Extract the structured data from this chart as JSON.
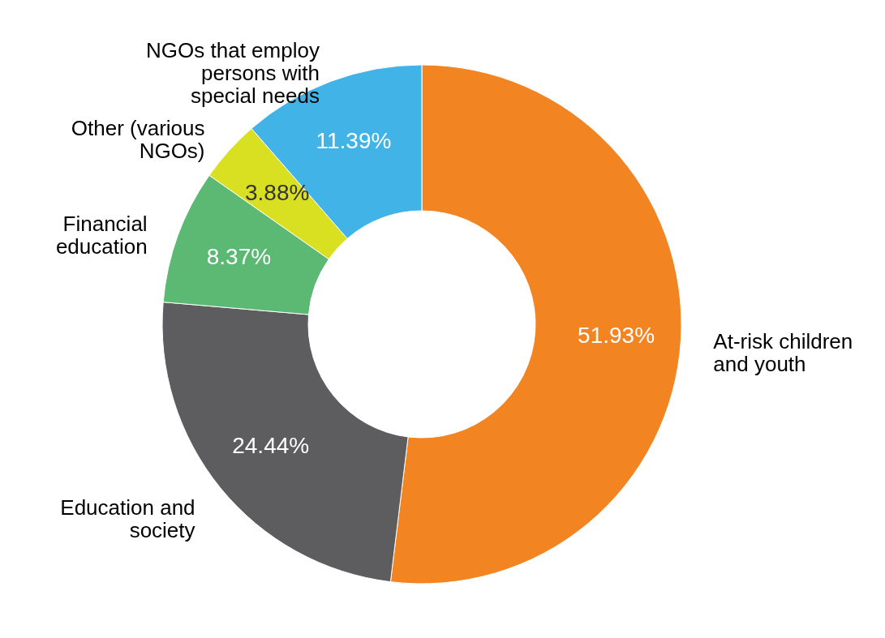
{
  "chart_data": {
    "type": "donut",
    "categories": [
      "At-risk children and youth",
      "Education and society",
      "Financial education",
      "Other (various NGOs)",
      "NGOs that employ persons with special needs"
    ],
    "values": [
      51.93,
      24.44,
      8.37,
      3.88,
      11.39
    ],
    "value_labels": [
      "51.93%",
      "24.44%",
      "8.37%",
      "3.88%",
      "11.39%"
    ],
    "colors": [
      "#f28422",
      "#5d5d5f",
      "#5cb974",
      "#d9e021",
      "#41b3e6"
    ]
  }
}
